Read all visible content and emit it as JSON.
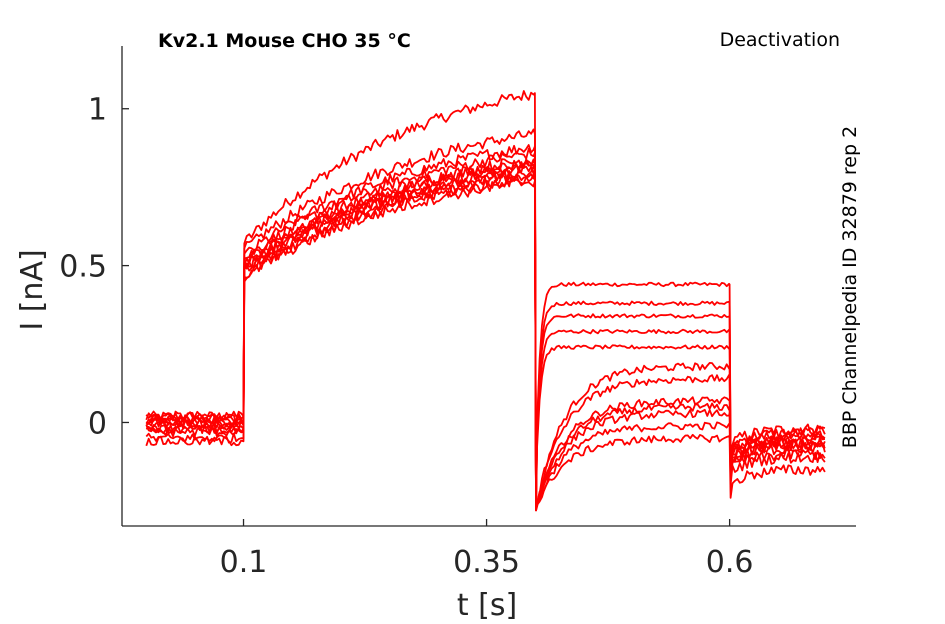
{
  "chart_data": {
    "type": "line",
    "title": "Kv2.1  Mouse  CHO  35 °C",
    "subtitle": "Deactivation",
    "side_label": "BBP Channelpedia ID 32879 rep 2",
    "xlabel": "t [s]",
    "ylabel": "I [nA]",
    "xlim": [
      -0.025,
      0.73
    ],
    "ylim": [
      -0.33,
      1.2
    ],
    "xticks": [
      0.1,
      0.35,
      0.6
    ],
    "xtick_labels": [
      "0.1",
      "0.35",
      "0.6"
    ],
    "yticks": [
      0,
      0.5,
      1
    ],
    "ytick_labels": [
      "0",
      "0.5",
      "1"
    ],
    "grid": false,
    "line_color": "#ff0000",
    "protocol": {
      "step_on": 0.1,
      "step_off": 0.4,
      "tail_end": 0.6,
      "t_end": 0.7
    },
    "series": [
      {
        "baseline": 0.02,
        "onset": 0.57,
        "peak": 1.05,
        "tail": 0.44,
        "post": -0.02
      },
      {
        "baseline": 0.02,
        "onset": 0.55,
        "peak": 0.92,
        "tail": 0.38,
        "post": -0.03
      },
      {
        "baseline": 0.01,
        "onset": 0.53,
        "peak": 0.88,
        "tail": 0.34,
        "post": -0.04
      },
      {
        "baseline": 0.01,
        "onset": 0.52,
        "peak": 0.86,
        "tail": 0.29,
        "post": -0.05
      },
      {
        "baseline": 0.0,
        "onset": 0.51,
        "peak": 0.84,
        "tail": 0.24,
        "post": -0.05
      },
      {
        "baseline": 0.0,
        "onset": 0.5,
        "peak": 0.83,
        "tail": 0.18,
        "post": -0.06
      },
      {
        "baseline": -0.01,
        "onset": 0.5,
        "peak": 0.82,
        "tail": 0.14,
        "post": -0.07
      },
      {
        "baseline": -0.02,
        "onset": 0.49,
        "peak": 0.81,
        "tail": 0.07,
        "post": -0.07
      },
      {
        "baseline": -0.02,
        "onset": 0.49,
        "peak": 0.8,
        "tail": 0.05,
        "post": -0.08
      },
      {
        "baseline": -0.03,
        "onset": 0.48,
        "peak": 0.79,
        "tail": 0.03,
        "post": -0.1
      },
      {
        "baseline": -0.05,
        "onset": 0.47,
        "peak": 0.78,
        "tail": -0.01,
        "post": -0.11
      },
      {
        "baseline": -0.06,
        "onset": 0.46,
        "peak": 0.77,
        "tail": -0.05,
        "post": -0.15
      }
    ]
  }
}
